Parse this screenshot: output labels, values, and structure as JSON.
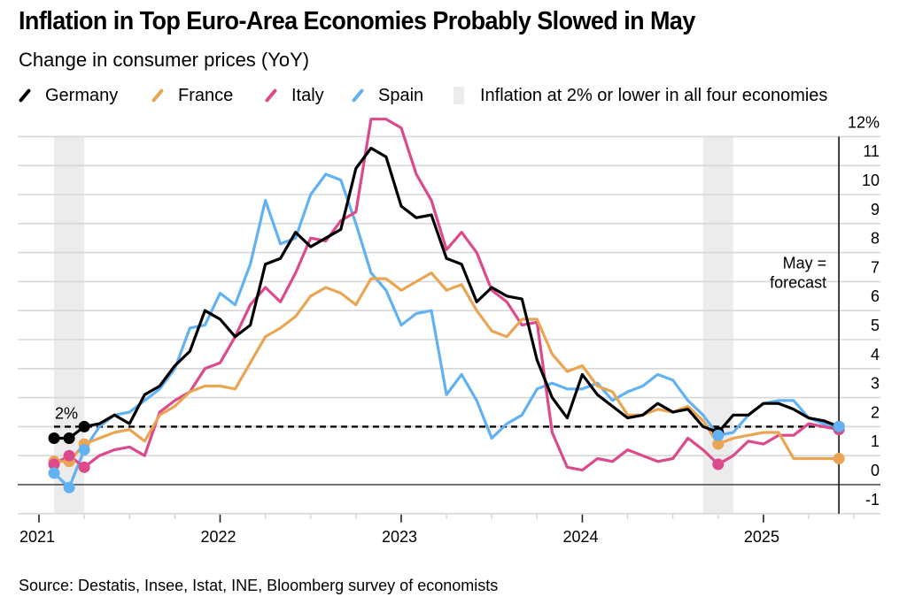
{
  "header": {
    "title": "Inflation in Top Euro-Area Economies Probably Slowed in May",
    "subtitle": "Change in consumer prices (YoY)"
  },
  "legend": {
    "items": [
      {
        "label": "Germany",
        "color": "#000000",
        "icon": "line-swatch-icon"
      },
      {
        "label": "France",
        "color": "#eaa553",
        "icon": "line-swatch-icon"
      },
      {
        "label": "Italy",
        "color": "#dc4a8c",
        "icon": "line-swatch-icon"
      },
      {
        "label": "Spain",
        "color": "#62b1f2",
        "icon": "line-swatch-icon"
      }
    ],
    "shade_label": "Inflation at 2% or lower in all four economies",
    "shade_color": "#ececec"
  },
  "footer": {
    "source": "Source: Destatis, Insee, Istat, INE, Bloomberg survey of economists"
  },
  "chart_data": {
    "type": "line",
    "title": "Inflation in Top Euro-Area Economies Probably Slowed in May",
    "subtitle": "Change in consumer prices (YoY)",
    "xlabel": "",
    "ylabel": "",
    "start_month": "2021-01",
    "end_month": "2025-05",
    "x_ticks": [
      "2021",
      "2022",
      "2023",
      "2024",
      "2025"
    ],
    "y_ticks": [
      -1,
      0,
      1,
      2,
      3,
      4,
      5,
      6,
      7,
      8,
      9,
      10,
      11,
      12
    ],
    "y_tick_labels": [
      "-1",
      "0",
      "1",
      "2",
      "3",
      "4",
      "5",
      "6",
      "7",
      "8",
      "9",
      "10",
      "11",
      "12%"
    ],
    "ylim": [
      -1,
      12
    ],
    "grid": true,
    "legend_position": "top",
    "reference_line": {
      "value": 2,
      "label": "2%",
      "style": "dashed"
    },
    "shaded_periods": [
      {
        "start": "2021-01",
        "end": "2021-03"
      },
      {
        "start": "2024-08",
        "end": "2024-10"
      }
    ],
    "marker_months": [
      "2021-01",
      "2021-02",
      "2021-03",
      "2024-09",
      "2025-05"
    ],
    "annotations": [
      {
        "text_lines": [
          "May =",
          "forecast"
        ],
        "at": "2025-05"
      }
    ],
    "series": [
      {
        "name": "Germany",
        "color": "#000000",
        "values": [
          1.6,
          1.6,
          2.0,
          2.1,
          2.4,
          2.1,
          3.1,
          3.4,
          4.1,
          4.6,
          6.0,
          5.7,
          5.1,
          5.5,
          7.6,
          7.8,
          8.7,
          8.2,
          8.5,
          8.8,
          10.9,
          11.6,
          11.3,
          9.6,
          9.2,
          9.3,
          7.8,
          7.6,
          6.3,
          6.8,
          6.5,
          6.4,
          4.3,
          3.0,
          2.3,
          3.8,
          3.1,
          2.7,
          2.3,
          2.4,
          2.8,
          2.5,
          2.6,
          2.0,
          1.8,
          2.4,
          2.4,
          2.8,
          2.8,
          2.6,
          2.3,
          2.2,
          2.0
        ]
      },
      {
        "name": "France",
        "color": "#eaa553",
        "values": [
          0.8,
          0.8,
          1.4,
          1.6,
          1.8,
          1.9,
          1.5,
          2.4,
          2.7,
          3.2,
          3.4,
          3.4,
          3.3,
          4.2,
          5.1,
          5.4,
          5.8,
          6.5,
          6.8,
          6.6,
          6.2,
          7.1,
          7.1,
          6.7,
          7.0,
          7.3,
          6.7,
          6.9,
          6.0,
          5.3,
          5.1,
          5.7,
          5.7,
          4.5,
          3.9,
          4.1,
          3.4,
          3.2,
          2.4,
          2.4,
          2.6,
          2.5,
          2.7,
          2.2,
          1.4,
          1.6,
          1.7,
          1.8,
          1.8,
          0.9,
          0.9,
          0.9,
          0.9
        ]
      },
      {
        "name": "Italy",
        "color": "#dc4a8c",
        "values": [
          0.7,
          1.0,
          0.6,
          1.0,
          1.2,
          1.3,
          1.0,
          2.5,
          2.9,
          3.2,
          4.0,
          4.2,
          5.1,
          6.2,
          6.8,
          6.3,
          7.3,
          8.5,
          8.4,
          9.1,
          9.4,
          12.6,
          12.6,
          12.3,
          10.7,
          9.8,
          8.1,
          8.7,
          8.0,
          6.7,
          6.3,
          5.5,
          5.6,
          1.8,
          0.6,
          0.5,
          0.9,
          0.8,
          1.2,
          1.0,
          0.8,
          0.9,
          1.6,
          1.2,
          0.7,
          1.0,
          1.5,
          1.4,
          1.7,
          1.7,
          2.1,
          2.0,
          1.9
        ]
      },
      {
        "name": "Spain",
        "color": "#62b1f2",
        "values": [
          0.4,
          -0.1,
          1.2,
          2.0,
          2.4,
          2.5,
          2.9,
          3.3,
          4.0,
          5.4,
          5.5,
          6.6,
          6.2,
          7.6,
          9.8,
          8.3,
          8.5,
          10.0,
          10.7,
          10.5,
          9.0,
          7.3,
          6.7,
          5.5,
          5.9,
          6.0,
          3.1,
          3.8,
          2.9,
          1.6,
          2.1,
          2.4,
          3.3,
          3.5,
          3.3,
          3.3,
          3.5,
          2.9,
          3.2,
          3.4,
          3.8,
          3.6,
          2.9,
          2.4,
          1.7,
          1.8,
          2.4,
          2.8,
          2.9,
          2.9,
          2.3,
          2.1,
          2.0
        ]
      }
    ]
  }
}
